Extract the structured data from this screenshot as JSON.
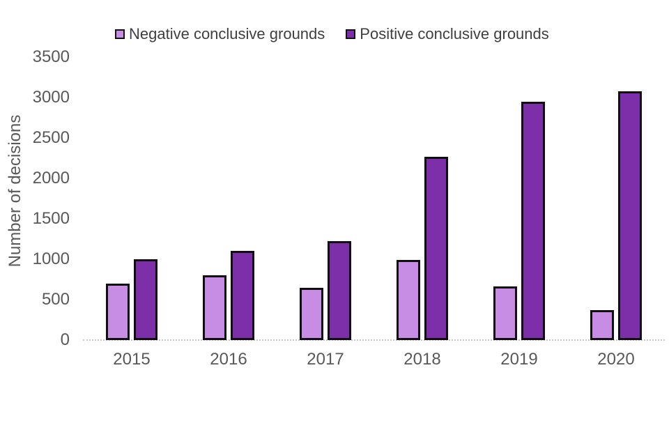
{
  "chart_data": {
    "type": "bar",
    "title": "",
    "categories": [
      "2015",
      "2016",
      "2017",
      "2018",
      "2019",
      "2020"
    ],
    "series": [
      {
        "name": "Negative conclusive grounds",
        "color": "#c78de4",
        "values": [
          700,
          800,
          650,
          990,
          660,
          370
        ]
      },
      {
        "name": "Positive conclusive grounds",
        "color": "#7c2fa8",
        "values": [
          1000,
          1100,
          1220,
          2270,
          2950,
          3080
        ]
      }
    ],
    "xlabel": "",
    "ylabel": "Number of decisions",
    "ylim": [
      0,
      3500
    ],
    "yticks": [
      0,
      500,
      1000,
      1500,
      2000,
      2500,
      3000,
      3500
    ],
    "grid": false,
    "legend_position": "top",
    "colors": {
      "bar_border": "#0f0f0f",
      "axis_line": "#c9c9c9",
      "tick_label": "#595959",
      "legend_text": "#3f3f3f",
      "background": "#ffffff"
    }
  }
}
